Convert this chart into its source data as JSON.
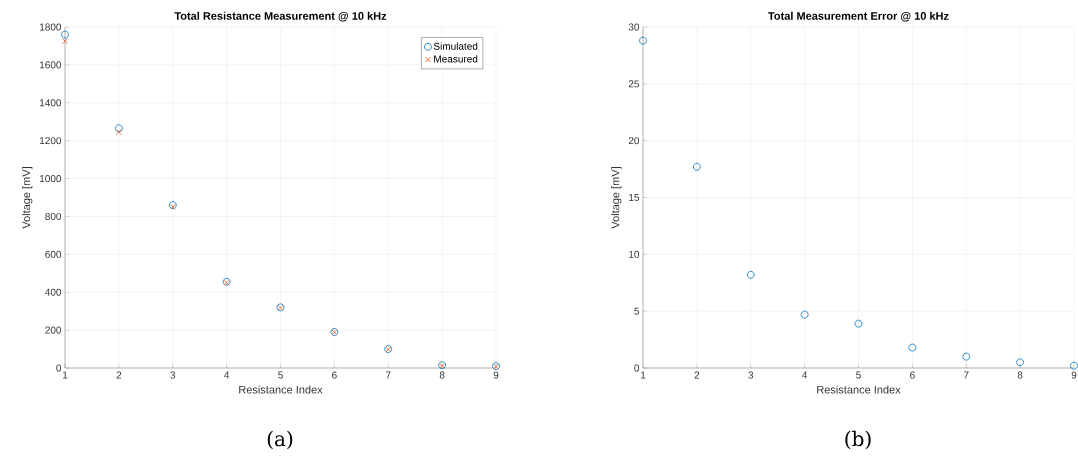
{
  "chart_data": [
    {
      "type": "scatter",
      "title": "Total Resistance Measurement @ 10 kHz",
      "xlabel": "Resistance Index",
      "ylabel": "Voltage [mV]",
      "x": [
        1,
        2,
        3,
        4,
        5,
        6,
        7,
        8,
        9
      ],
      "series": [
        {
          "name": "Simulated",
          "color": "#0072bd",
          "marker": "circle",
          "values": [
            1760,
            1265,
            860,
            455,
            320,
            190,
            100,
            15,
            10
          ]
        },
        {
          "name": "Measured",
          "color": "#d95319",
          "marker": "cross",
          "values": [
            1725,
            1245,
            850,
            450,
            318,
            188,
            98,
            12,
            8
          ]
        }
      ],
      "xlim": [
        1,
        9
      ],
      "xticks": [
        1,
        2,
        3,
        4,
        5,
        6,
        7,
        8,
        9
      ],
      "ylim": [
        0,
        1800
      ],
      "yticks": [
        0,
        200,
        400,
        600,
        800,
        1000,
        1200,
        1400,
        1600,
        1800
      ],
      "grid": true,
      "legend": "top right",
      "annotations": [
        "(a)"
      ]
    },
    {
      "type": "scatter",
      "title": "Total Measurement Error @ 10 kHz",
      "xlabel": "Resistance Index",
      "ylabel": "Voltage [mV]",
      "x": [
        1,
        2,
        3,
        4,
        5,
        6,
        7,
        8,
        9
      ],
      "series": [
        {
          "color": "#0072bd",
          "marker": "circle",
          "values": [
            28.8,
            17.7,
            8.2,
            4.7,
            3.9,
            1.8,
            1.0,
            0.5,
            0.2
          ]
        }
      ],
      "xlim": [
        1,
        9
      ],
      "xticks": [
        1,
        2,
        3,
        4,
        5,
        6,
        7,
        8,
        9
      ],
      "ylim": [
        0,
        30
      ],
      "yticks": [
        0,
        5,
        10,
        15,
        20,
        25,
        30
      ],
      "grid": true,
      "legend": false,
      "annotations": [
        "(b)"
      ]
    }
  ]
}
